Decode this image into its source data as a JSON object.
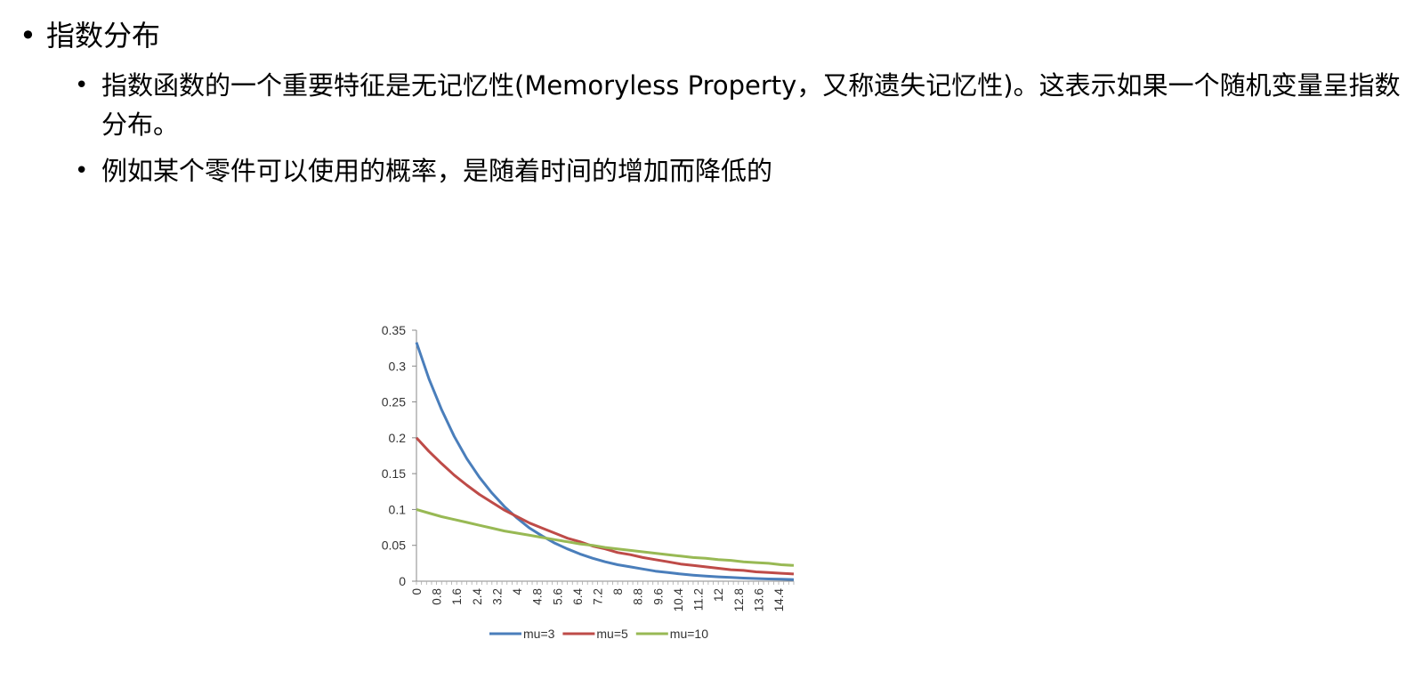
{
  "slide": {
    "heading": "指数分布",
    "bullets": [
      "指数函数的一个重要特征是无记忆性(Memoryless Property，又称遗失记忆性)。这表示如果一个随机变量呈指数分布。",
      "例如某个零件可以使用的概率，是随着时间的增加而降低的"
    ]
  },
  "chart_data": {
    "type": "line",
    "title": "",
    "xlabel": "",
    "ylabel": "",
    "x_range": [
      0,
      15
    ],
    "ylim": [
      0,
      0.35
    ],
    "y_ticks": [
      0,
      0.05,
      0.1,
      0.15,
      0.2,
      0.25,
      0.3,
      0.35
    ],
    "y_tick_labels": [
      "0",
      "0.05",
      "0.1",
      "0.15",
      "0.2",
      "0.25",
      "0.3",
      "0.35"
    ],
    "x_tick_labels": [
      "0",
      "0.8",
      "1.6",
      "2.4",
      "3.2",
      "4",
      "4.8",
      "5.6",
      "6.4",
      "7.2",
      "8",
      "8.8",
      "9.6",
      "10.4",
      "11.2",
      "12",
      "12.8",
      "13.6",
      "14.4"
    ],
    "x_tick_step": 0.8,
    "minor_tick_step": 0.2,
    "grid": false,
    "legend": "bottom",
    "series": [
      {
        "name": "mu=3",
        "color": "#4a7ebb",
        "x": [
          0,
          0.5,
          1,
          1.5,
          2,
          2.5,
          3,
          3.5,
          4,
          4.5,
          5,
          5.5,
          6,
          6.5,
          7,
          7.5,
          8,
          8.5,
          9,
          9.5,
          10,
          10.5,
          11,
          11.5,
          12,
          12.5,
          13,
          13.5,
          14,
          14.5,
          15
        ],
        "values": [
          0.333,
          0.282,
          0.239,
          0.202,
          0.171,
          0.145,
          0.123,
          0.104,
          0.088,
          0.074,
          0.063,
          0.053,
          0.045,
          0.038,
          0.032,
          0.027,
          0.023,
          0.02,
          0.017,
          0.014,
          0.012,
          0.01,
          0.0085,
          0.0072,
          0.0061,
          0.0052,
          0.0044,
          0.0037,
          0.0031,
          0.0027,
          0.0022
        ]
      },
      {
        "name": "mu=5",
        "color": "#be4b48",
        "x": [
          0,
          0.5,
          1,
          1.5,
          2,
          2.5,
          3,
          3.5,
          4,
          4.5,
          5,
          5.5,
          6,
          6.5,
          7,
          7.5,
          8,
          8.5,
          9,
          9.5,
          10,
          10.5,
          11,
          11.5,
          12,
          12.5,
          13,
          13.5,
          14,
          14.5,
          15
        ],
        "values": [
          0.2,
          0.181,
          0.164,
          0.148,
          0.134,
          0.121,
          0.11,
          0.099,
          0.09,
          0.081,
          0.074,
          0.067,
          0.06,
          0.055,
          0.049,
          0.045,
          0.04,
          0.037,
          0.033,
          0.03,
          0.027,
          0.024,
          0.022,
          0.02,
          0.018,
          0.016,
          0.015,
          0.013,
          0.012,
          0.011,
          0.01
        ]
      },
      {
        "name": "mu=10",
        "color": "#98b954",
        "x": [
          0,
          0.5,
          1,
          1.5,
          2,
          2.5,
          3,
          3.5,
          4,
          4.5,
          5,
          5.5,
          6,
          6.5,
          7,
          7.5,
          8,
          8.5,
          9,
          9.5,
          10,
          10.5,
          11,
          11.5,
          12,
          12.5,
          13,
          13.5,
          14,
          14.5,
          15
        ],
        "values": [
          0.1,
          0.095,
          0.09,
          0.086,
          0.082,
          0.078,
          0.074,
          0.07,
          0.067,
          0.064,
          0.061,
          0.058,
          0.055,
          0.052,
          0.05,
          0.047,
          0.045,
          0.043,
          0.041,
          0.039,
          0.037,
          0.035,
          0.033,
          0.032,
          0.03,
          0.029,
          0.027,
          0.026,
          0.025,
          0.023,
          0.022
        ]
      }
    ]
  }
}
